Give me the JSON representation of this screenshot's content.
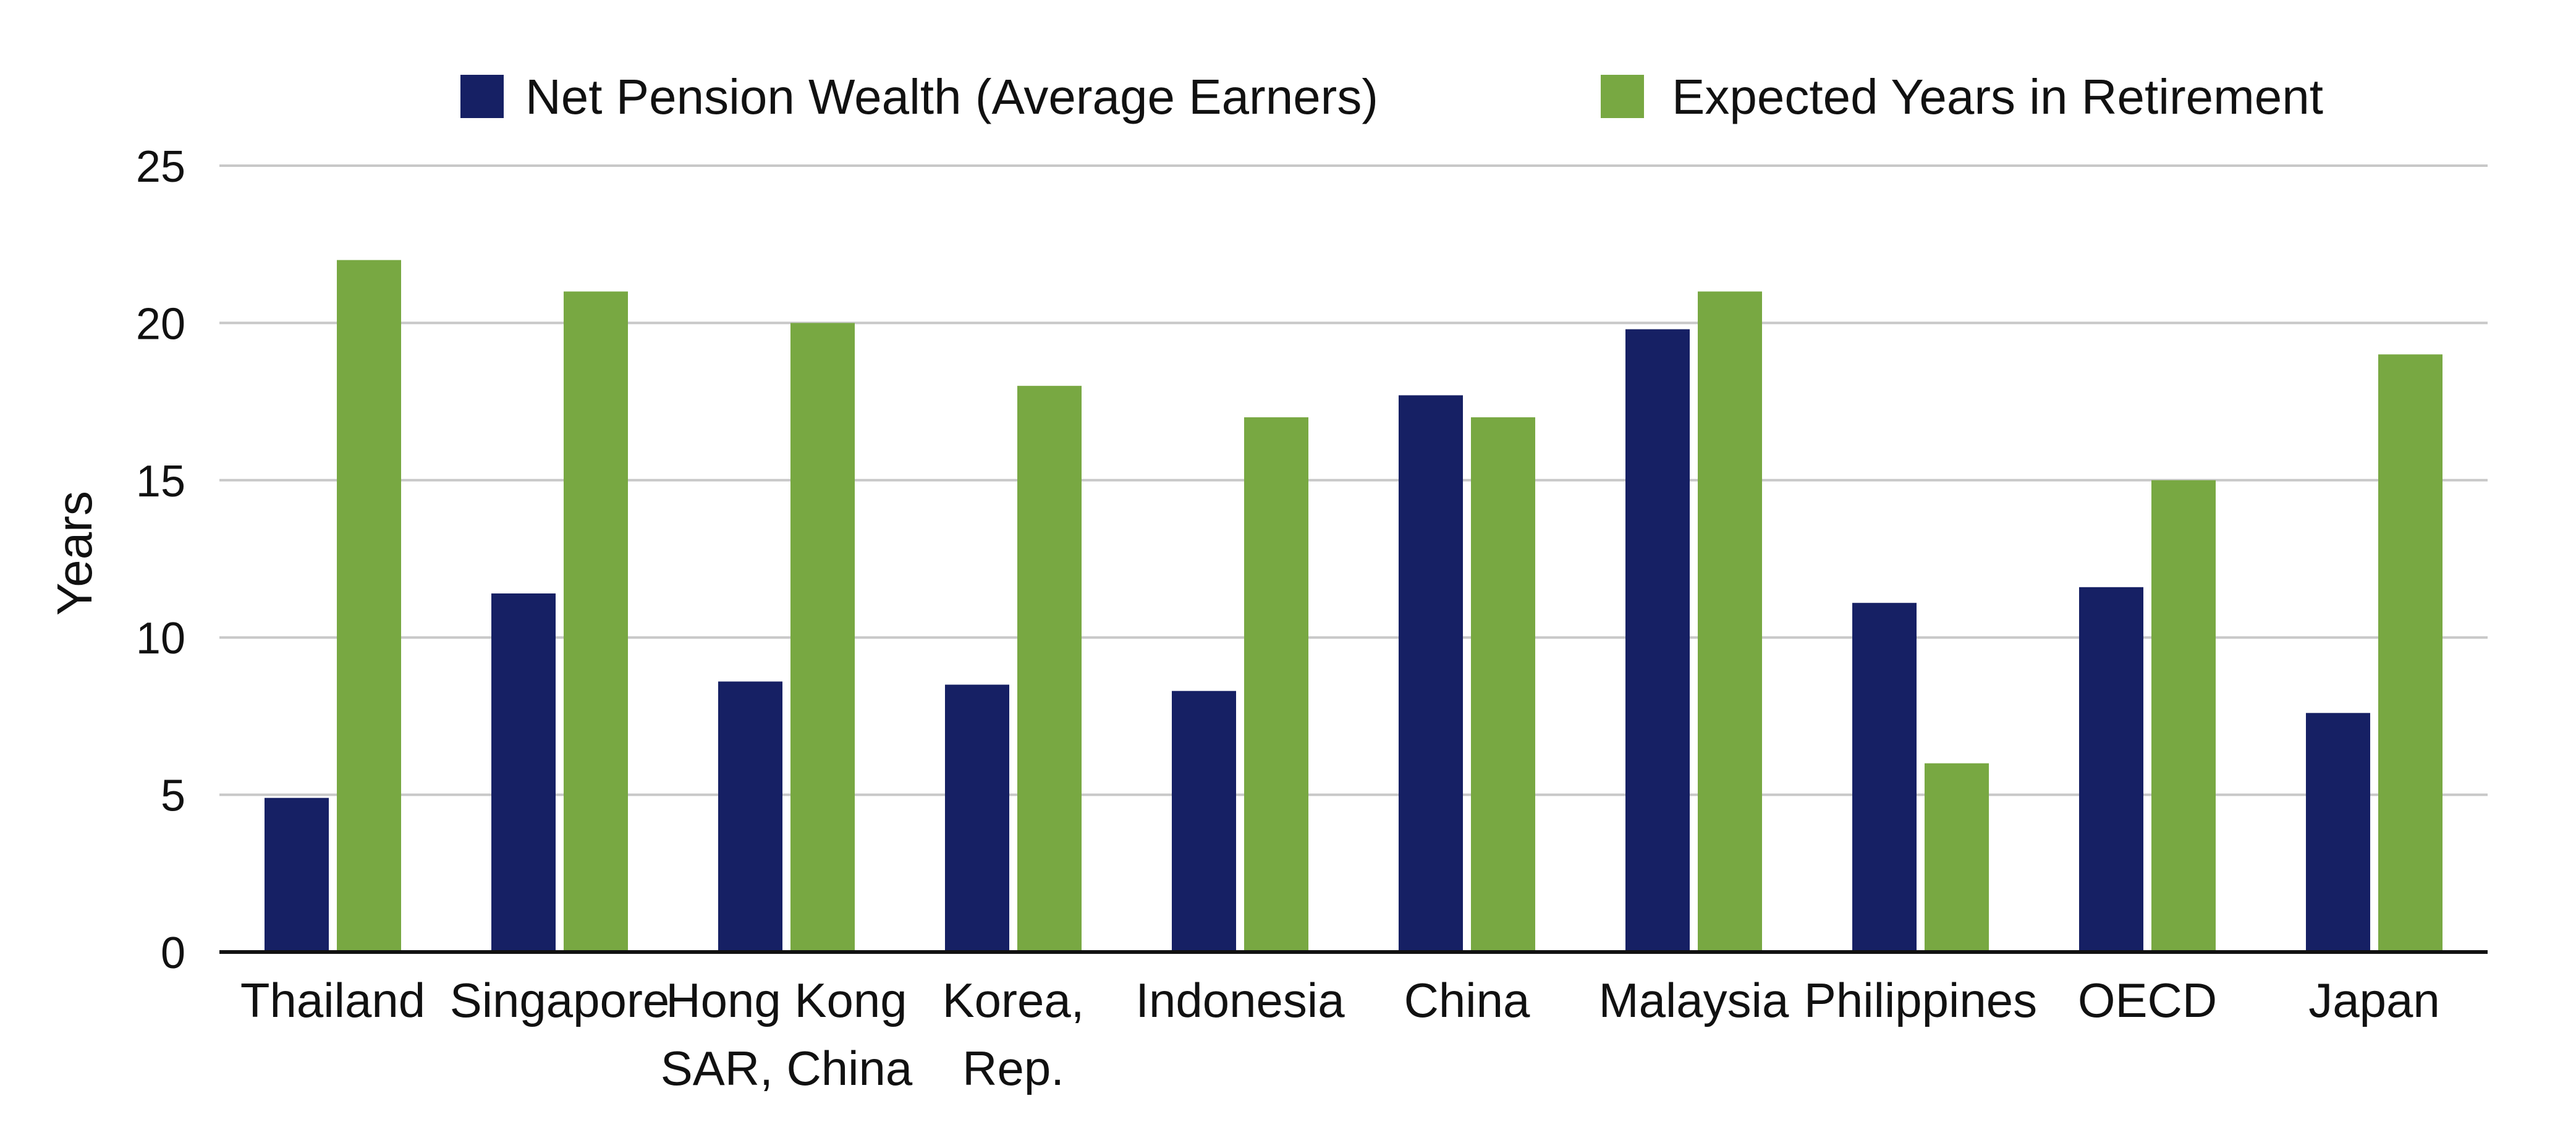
{
  "chart_data": {
    "type": "bar",
    "title": "",
    "xlabel": "",
    "ylabel": "Years",
    "ylim": [
      0,
      25
    ],
    "yticks": [
      0,
      5,
      10,
      15,
      20,
      25
    ],
    "grid": true,
    "legend_position": "top",
    "categories": [
      [
        "Thailand"
      ],
      [
        "Singapore"
      ],
      [
        "Hong Kong",
        "SAR, China"
      ],
      [
        "Korea,",
        "Rep."
      ],
      [
        "Indonesia"
      ],
      [
        "China"
      ],
      [
        "Malaysia"
      ],
      [
        "Philippines"
      ],
      [
        "OECD"
      ],
      [
        "Japan"
      ]
    ],
    "series": [
      {
        "name": "Net Pension Wealth (Average Earners)",
        "color": "#162064",
        "values": [
          4.9,
          11.4,
          8.6,
          8.5,
          8.3,
          17.7,
          19.8,
          11.1,
          11.6,
          7.6
        ]
      },
      {
        "name": "Expected Years in Retirement",
        "color": "#78A842",
        "values": [
          22,
          21,
          20,
          18,
          17,
          17,
          21,
          6,
          15,
          19
        ]
      }
    ],
    "colors": {
      "gridline": "#C8C8C8",
      "axis": "#111111"
    }
  }
}
